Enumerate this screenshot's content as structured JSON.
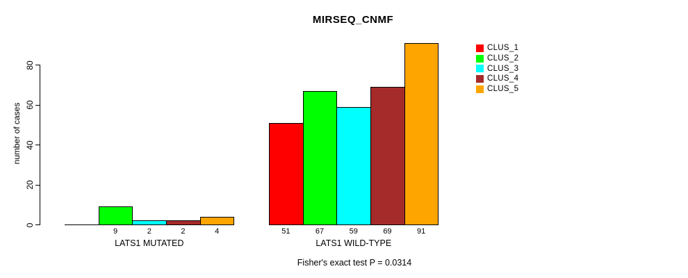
{
  "title": "MIRSEQ_CNMF",
  "footer": "Fisher's exact test P = 0.0314",
  "chart_data": {
    "type": "bar",
    "title": "MIRSEQ_CNMF",
    "xlabel": "",
    "ylabel": "number of cases",
    "ylim": [
      0,
      80
    ],
    "yticks": [
      0,
      20,
      40,
      60,
      80
    ],
    "grid": false,
    "legend_position": "right",
    "categories": [
      "LATS1 MUTATED",
      "LATS1 WILD-TYPE"
    ],
    "series": [
      {
        "name": "CLUS_1",
        "color": "#FF0000",
        "values": [
          0,
          51
        ]
      },
      {
        "name": "CLUS_2",
        "color": "#00FF00",
        "values": [
          9,
          67
        ]
      },
      {
        "name": "CLUS_3",
        "color": "#00FFFF",
        "values": [
          2,
          59
        ]
      },
      {
        "name": "CLUS_4",
        "color": "#A52A2A",
        "values": [
          2,
          69
        ]
      },
      {
        "name": "CLUS_5",
        "color": "#FFA500",
        "values": [
          4,
          91
        ]
      }
    ],
    "value_labels": [
      [
        "",
        "9",
        "2",
        "2",
        "4"
      ],
      [
        "51",
        "67",
        "59",
        "69",
        "91"
      ]
    ],
    "annotation": "Fisher's exact test P = 0.0314",
    "bar_border_color": "#000000",
    "axis_color": "#000000",
    "text_color": "#000000"
  }
}
